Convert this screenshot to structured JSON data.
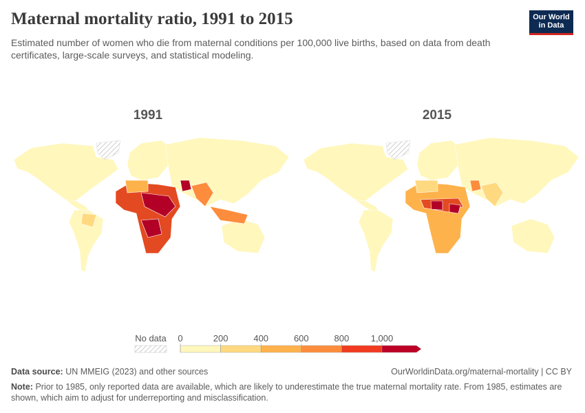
{
  "header": {
    "title": "Maternal mortality ratio, 1991 to 2015",
    "subtitle": "Estimated number of women who die from maternal conditions per 100,000 live births, based on data from death certificates, large-scale surveys, and statistical modeling.",
    "logo": [
      "Our World",
      "in Data"
    ]
  },
  "maps": [
    {
      "title": "1991"
    },
    {
      "title": "2015"
    }
  ],
  "legend": {
    "no_data": "No data",
    "ticks": [
      0,
      200,
      400,
      600,
      800,
      {
        "value": 1000,
        "label": "1,000"
      }
    ],
    "colors": [
      "#fff7bc",
      "#fed980",
      "#feb24c",
      "#fd8d3c",
      "#f03b20",
      "#bd0026"
    ]
  },
  "footer": {
    "source_label": "Data source:",
    "source": "UN MMEIG (2023) and other sources",
    "url": "OurWorldinData.org/maternal-mortality | CC BY",
    "note_label": "Note:",
    "note": "Prior to 1985, only reported data are available, which are likely to underestimate the true maternal mortality rate. From 1985, estimates are shown, which aim to adjust for underreporting and misclassification."
  }
}
